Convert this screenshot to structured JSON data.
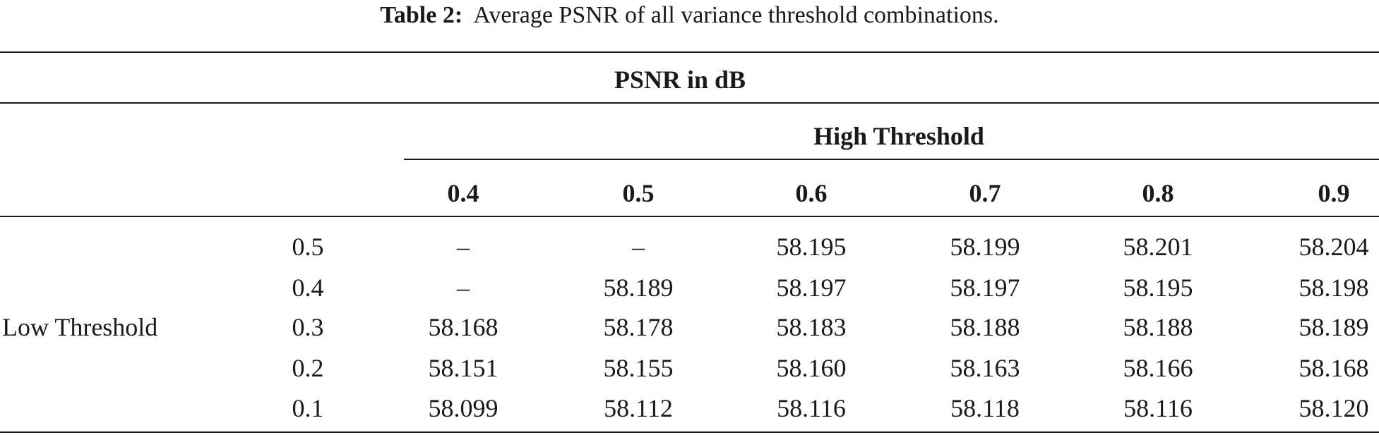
{
  "caption": {
    "label": "Table 2:",
    "text": "Average PSNR of all variance threshold combinations."
  },
  "table": {
    "group_header": "PSNR in dB",
    "col_group_header": "High Threshold",
    "row_group_header": "Low Threshold",
    "columns": [
      "0.4",
      "0.5",
      "0.6",
      "0.7",
      "0.8",
      "0.9"
    ],
    "rows": [
      {
        "low": "0.5",
        "values": [
          "–",
          "–",
          "58.195",
          "58.199",
          "58.201",
          "58.204"
        ]
      },
      {
        "low": "0.4",
        "values": [
          "–",
          "58.189",
          "58.197",
          "58.197",
          "58.195",
          "58.198"
        ]
      },
      {
        "low": "0.3",
        "values": [
          "58.168",
          "58.178",
          "58.183",
          "58.188",
          "58.188",
          "58.189"
        ]
      },
      {
        "low": "0.2",
        "values": [
          "58.151",
          "58.155",
          "58.160",
          "58.163",
          "58.166",
          "58.168"
        ]
      },
      {
        "low": "0.1",
        "values": [
          "58.099",
          "58.112",
          "58.116",
          "58.118",
          "58.116",
          "58.120"
        ]
      }
    ]
  }
}
